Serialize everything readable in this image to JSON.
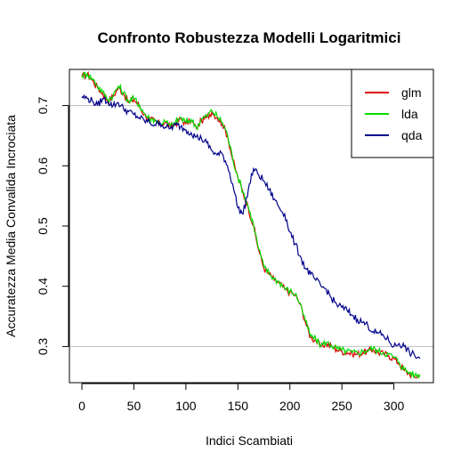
{
  "chart_data": {
    "type": "line",
    "title": "Confronto Robustezza Modelli Logaritmici",
    "xlabel": "Indici Scambiati",
    "ylabel": "Accuratezza Media Convalida Incrociata",
    "xlim": [
      -12,
      338
    ],
    "ylim": [
      0.24,
      0.76
    ],
    "xticks": [
      0,
      50,
      100,
      150,
      200,
      250,
      300
    ],
    "yticks": [
      0.3,
      0.4,
      0.5,
      0.6,
      0.7
    ],
    "reference_lines": [
      0.7,
      0.3
    ],
    "legend_position": "top-right",
    "grid": false,
    "series": [
      {
        "name": "glm",
        "color": "#e00000",
        "x": [
          0,
          5,
          10,
          15,
          20,
          25,
          30,
          35,
          40,
          45,
          50,
          55,
          60,
          65,
          70,
          75,
          80,
          85,
          90,
          95,
          100,
          105,
          110,
          115,
          120,
          125,
          130,
          135,
          140,
          145,
          150,
          155,
          160,
          165,
          170,
          175,
          180,
          185,
          190,
          195,
          200,
          205,
          210,
          215,
          220,
          225,
          230,
          235,
          240,
          245,
          250,
          255,
          260,
          265,
          270,
          275,
          280,
          285,
          290,
          295,
          300,
          305,
          310,
          315,
          320,
          325
        ],
        "values": [
          0.748,
          0.752,
          0.742,
          0.73,
          0.72,
          0.708,
          0.715,
          0.73,
          0.72,
          0.705,
          0.71,
          0.7,
          0.685,
          0.676,
          0.675,
          0.668,
          0.672,
          0.664,
          0.67,
          0.678,
          0.67,
          0.675,
          0.662,
          0.675,
          0.68,
          0.69,
          0.68,
          0.67,
          0.65,
          0.61,
          0.58,
          0.555,
          0.53,
          0.5,
          0.46,
          0.43,
          0.42,
          0.41,
          0.405,
          0.395,
          0.39,
          0.385,
          0.37,
          0.34,
          0.315,
          0.31,
          0.3,
          0.305,
          0.3,
          0.295,
          0.292,
          0.29,
          0.288,
          0.287,
          0.29,
          0.292,
          0.295,
          0.29,
          0.288,
          0.285,
          0.28,
          0.272,
          0.26,
          0.255,
          0.25,
          0.252
        ]
      },
      {
        "name": "lda",
        "color": "#00dd00",
        "x": [
          0,
          5,
          10,
          15,
          20,
          25,
          30,
          35,
          40,
          45,
          50,
          55,
          60,
          65,
          70,
          75,
          80,
          85,
          90,
          95,
          100,
          105,
          110,
          115,
          120,
          125,
          130,
          135,
          140,
          145,
          150,
          155,
          160,
          165,
          170,
          175,
          180,
          185,
          190,
          195,
          200,
          205,
          210,
          215,
          220,
          225,
          230,
          235,
          240,
          245,
          250,
          255,
          260,
          265,
          270,
          275,
          280,
          285,
          290,
          295,
          300,
          305,
          310,
          315,
          320,
          325
        ],
        "values": [
          0.75,
          0.753,
          0.745,
          0.733,
          0.722,
          0.71,
          0.717,
          0.732,
          0.722,
          0.707,
          0.712,
          0.702,
          0.687,
          0.678,
          0.677,
          0.67,
          0.674,
          0.666,
          0.672,
          0.68,
          0.672,
          0.677,
          0.664,
          0.677,
          0.682,
          0.692,
          0.682,
          0.672,
          0.652,
          0.612,
          0.582,
          0.557,
          0.532,
          0.502,
          0.462,
          0.432,
          0.422,
          0.412,
          0.407,
          0.397,
          0.392,
          0.387,
          0.372,
          0.342,
          0.317,
          0.312,
          0.302,
          0.307,
          0.302,
          0.297,
          0.294,
          0.292,
          0.29,
          0.289,
          0.292,
          0.294,
          0.297,
          0.292,
          0.29,
          0.287,
          0.282,
          0.274,
          0.262,
          0.257,
          0.252,
          0.254
        ]
      },
      {
        "name": "qda",
        "color": "#00008b",
        "x": [
          0,
          5,
          10,
          15,
          20,
          25,
          30,
          35,
          40,
          45,
          50,
          55,
          60,
          65,
          70,
          75,
          80,
          85,
          90,
          95,
          100,
          105,
          110,
          115,
          120,
          125,
          130,
          135,
          140,
          145,
          150,
          155,
          160,
          165,
          170,
          175,
          180,
          185,
          190,
          195,
          200,
          205,
          210,
          215,
          220,
          225,
          230,
          235,
          240,
          245,
          250,
          255,
          260,
          265,
          270,
          275,
          280,
          285,
          290,
          295,
          300,
          305,
          310,
          315,
          320,
          325
        ],
        "values": [
          0.715,
          0.712,
          0.708,
          0.7,
          0.712,
          0.706,
          0.7,
          0.705,
          0.695,
          0.69,
          0.685,
          0.68,
          0.675,
          0.672,
          0.668,
          0.672,
          0.664,
          0.662,
          0.668,
          0.665,
          0.66,
          0.655,
          0.648,
          0.645,
          0.638,
          0.625,
          0.618,
          0.62,
          0.6,
          0.57,
          0.53,
          0.52,
          0.56,
          0.595,
          0.585,
          0.575,
          0.56,
          0.545,
          0.53,
          0.52,
          0.49,
          0.47,
          0.45,
          0.43,
          0.42,
          0.41,
          0.4,
          0.395,
          0.38,
          0.37,
          0.365,
          0.36,
          0.352,
          0.345,
          0.34,
          0.335,
          0.325,
          0.322,
          0.318,
          0.31,
          0.3,
          0.305,
          0.3,
          0.29,
          0.285,
          0.28
        ]
      }
    ]
  }
}
